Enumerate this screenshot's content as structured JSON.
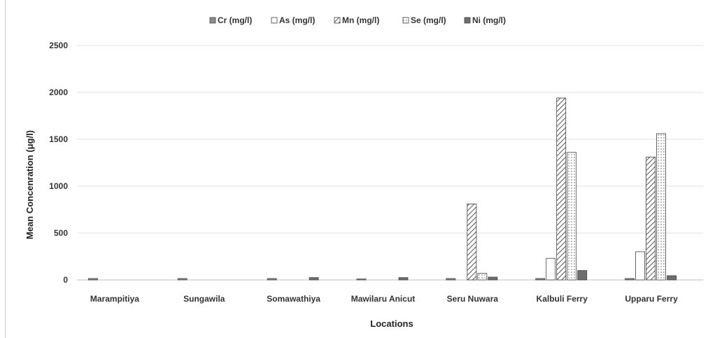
{
  "chart_data": {
    "type": "bar",
    "title": "",
    "xlabel": "Locations",
    "ylabel": "Mean Concenration (μg/l)",
    "ylim": [
      0,
      2500
    ],
    "yticks": [
      0,
      500,
      1000,
      1500,
      2000,
      2500
    ],
    "grid": true,
    "legend_position": "top",
    "categories": [
      "Marampitiya",
      "Sungawila",
      "Somawathiya",
      "Mawilaru Anicut",
      "Seru Nuwara",
      "Kalbuli Ferry",
      "Upparu Ferry"
    ],
    "series": [
      {
        "name": "Cr (mg/l)",
        "pattern": "solid-gray",
        "color": "#8c8c8c",
        "values": [
          15,
          15,
          15,
          10,
          15,
          15,
          15
        ]
      },
      {
        "name": "As (mg/l)",
        "pattern": "white",
        "color": "#ffffff",
        "values": [
          0,
          0,
          0,
          0,
          0,
          230,
          300
        ]
      },
      {
        "name": "Mn (mg/l)",
        "pattern": "diagonal-hatch",
        "color": "#a0a0a0",
        "values": [
          0,
          0,
          0,
          0,
          810,
          1940,
          1310
        ]
      },
      {
        "name": "Se (mg/l)",
        "pattern": "dotted",
        "color": "#ffffff",
        "values": [
          0,
          0,
          0,
          0,
          70,
          1360,
          1560
        ]
      },
      {
        "name": "Ni (mg/l)",
        "pattern": "solid-dark",
        "color": "#6e6e6e",
        "values": [
          0,
          0,
          25,
          25,
          30,
          100,
          45
        ]
      }
    ]
  }
}
